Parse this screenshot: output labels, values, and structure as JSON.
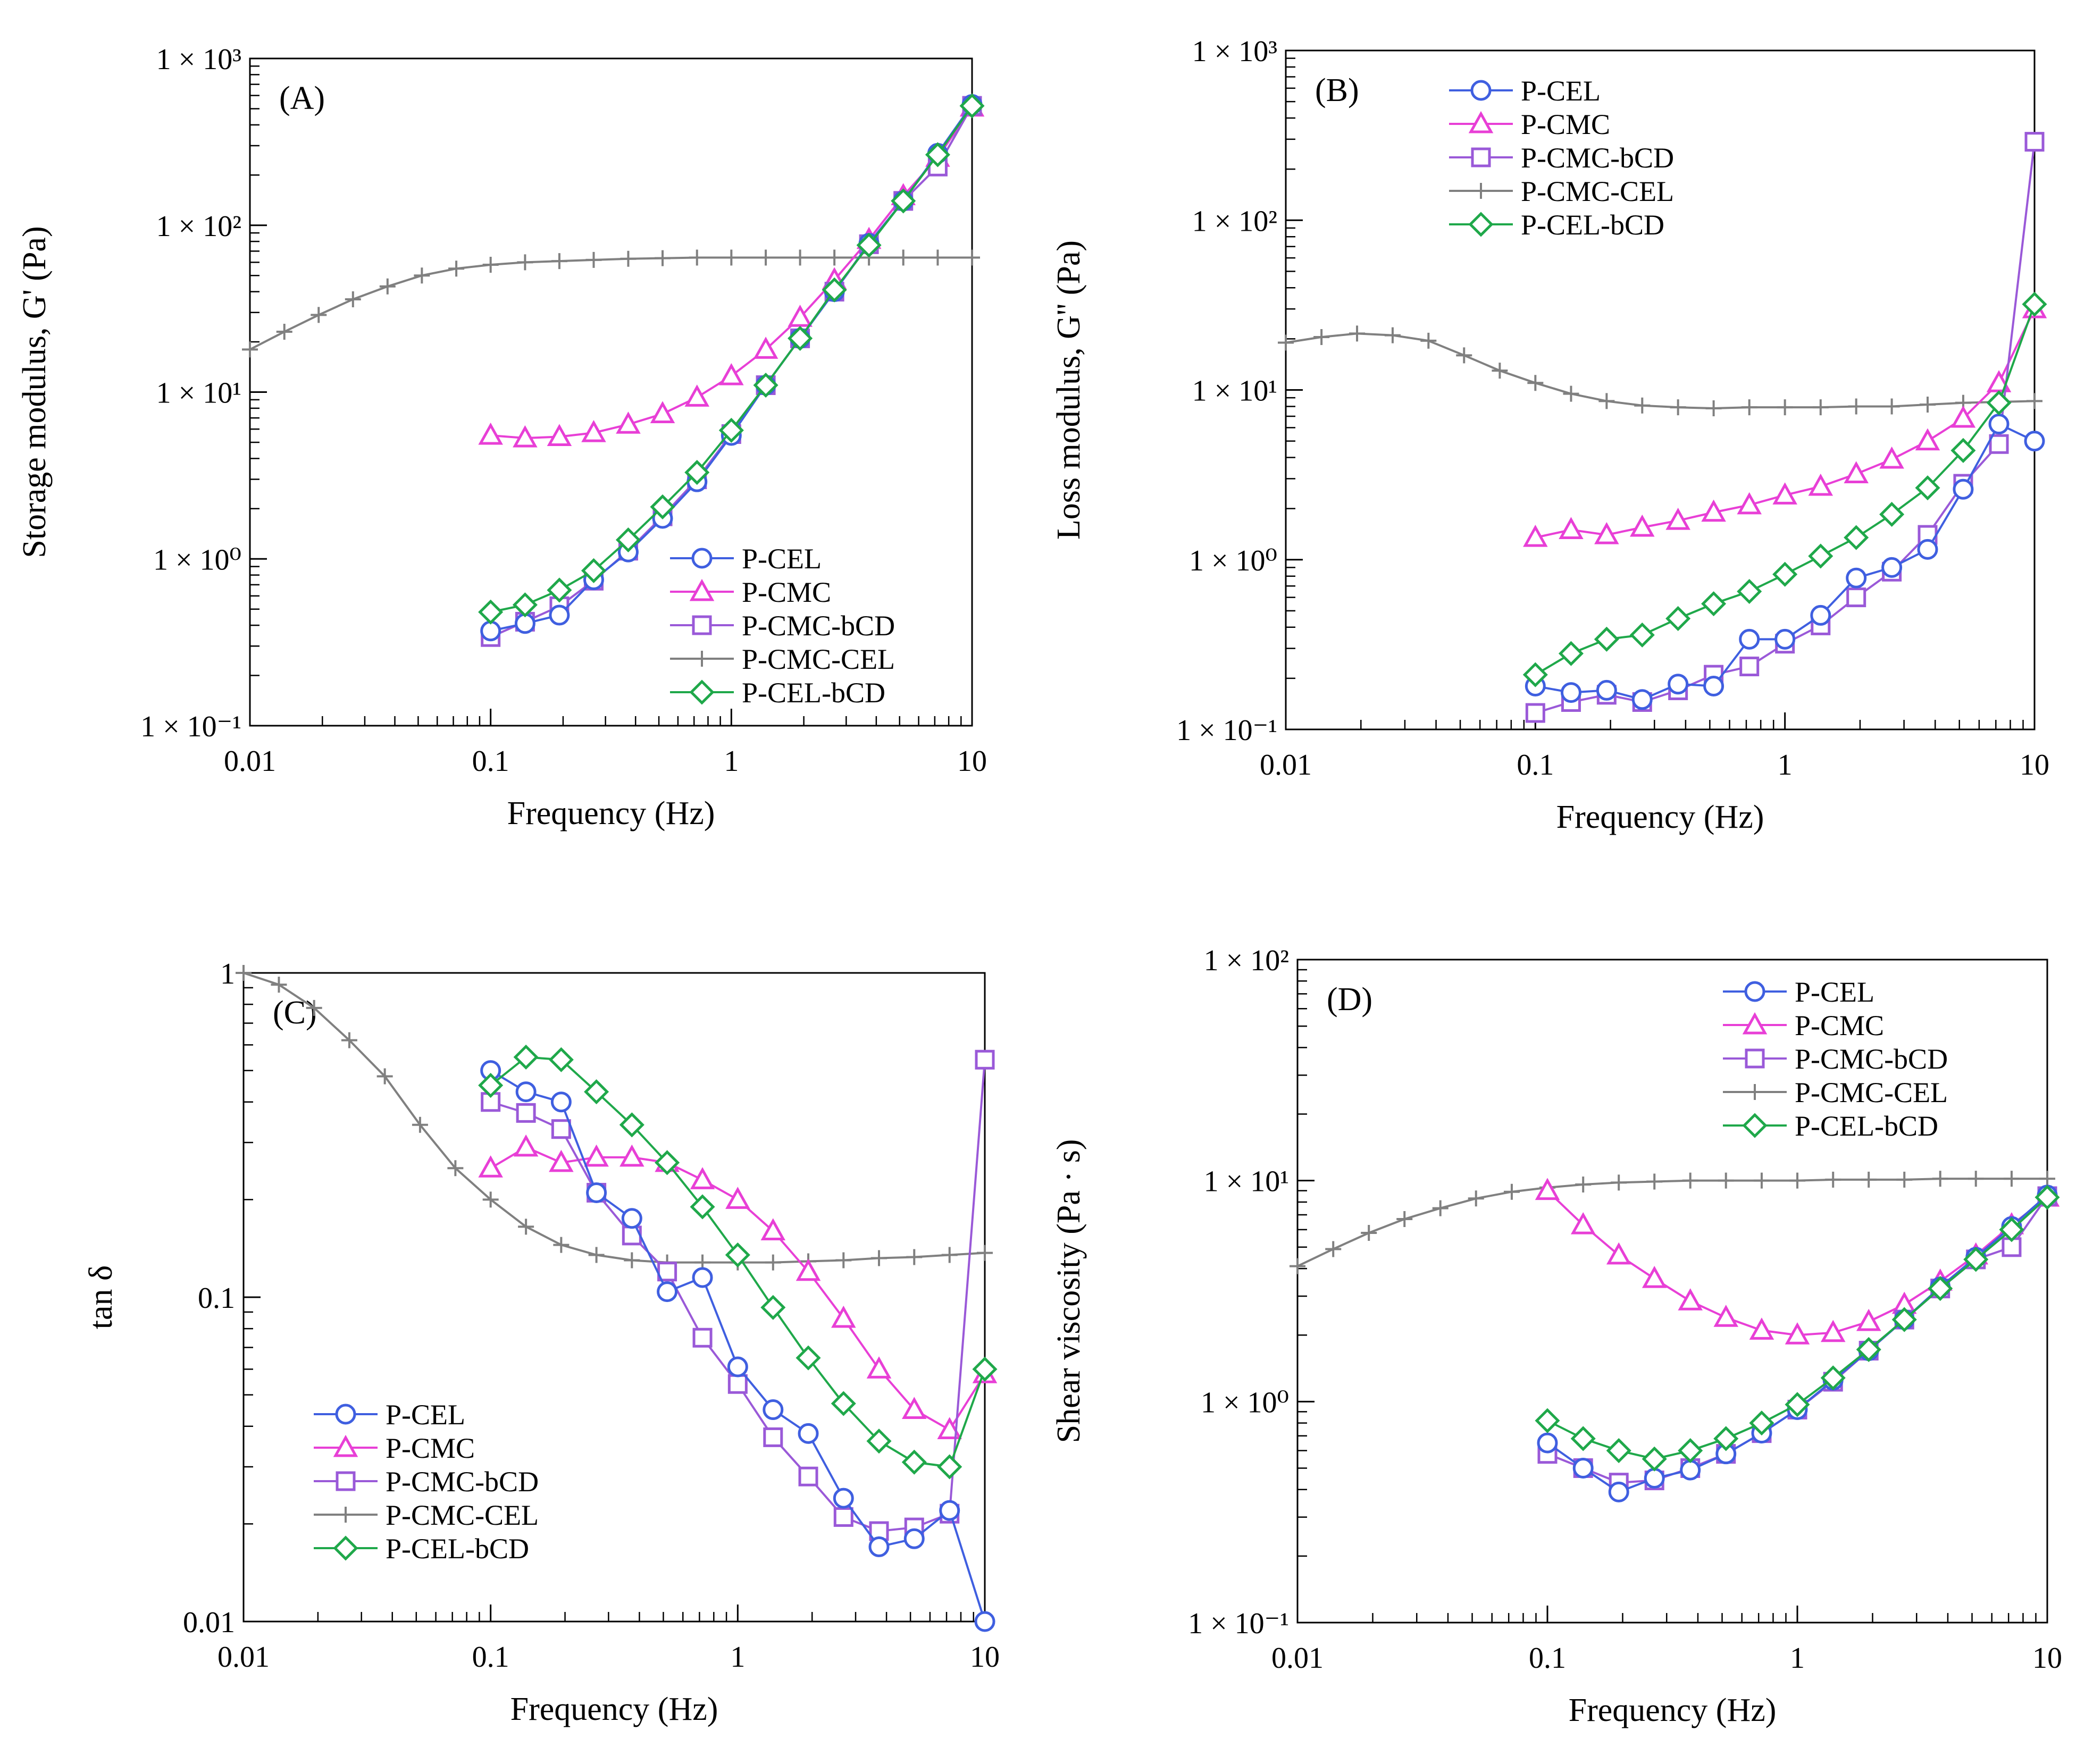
{
  "figure": {
    "series_styles": {
      "P-CEL": {
        "color": "#3f5fe0",
        "marker": "circle"
      },
      "P-CMC": {
        "color": "#e83fd6",
        "marker": "triangle"
      },
      "P-CMC-bCD": {
        "color": "#9a59d8",
        "marker": "square"
      },
      "P-CMC-CEL": {
        "color": "#808080",
        "marker": "plus"
      },
      "P-CEL-bCD": {
        "color": "#1fa84a",
        "marker": "diamond"
      }
    }
  },
  "chart_data": [
    {
      "id": "A",
      "type": "line",
      "panel_label": "(A)",
      "xlabel": "Frequency (Hz)",
      "ylabel": "Storage modulus, G' (Pa)",
      "xscale": "log",
      "yscale": "log",
      "xlim": [
        0.01,
        10
      ],
      "ylim": [
        0.1,
        1000
      ],
      "x_ticks": [
        {
          "v": 0.01,
          "label": "0.01"
        },
        {
          "v": 0.1,
          "label": "0.1"
        },
        {
          "v": 1,
          "label": "1"
        },
        {
          "v": 10,
          "label": "10"
        }
      ],
      "y_ticks": [
        {
          "v": 0.1,
          "label": "1 × 10⁻¹"
        },
        {
          "v": 1,
          "label": "1 × 10⁰"
        },
        {
          "v": 10,
          "label": "1 × 10¹"
        },
        {
          "v": 100,
          "label": "1 × 10²"
        },
        {
          "v": 1000,
          "label": "1 × 10³"
        }
      ],
      "legend_position": "bottom-right",
      "series": [
        {
          "name": "P-CEL",
          "x": [
            0.1,
            0.139,
            0.193,
            0.268,
            0.373,
            0.518,
            0.72,
            1.0,
            1.39,
            1.93,
            2.68,
            3.73,
            5.18,
            7.2,
            10
          ],
          "values": [
            0.37,
            0.41,
            0.46,
            0.75,
            1.1,
            1.75,
            2.9,
            5.5,
            11,
            21,
            40,
            78,
            140,
            270,
            530
          ]
        },
        {
          "name": "P-CMC",
          "x": [
            0.1,
            0.139,
            0.193,
            0.268,
            0.373,
            0.518,
            0.72,
            1.0,
            1.39,
            1.93,
            2.68,
            3.73,
            5.18,
            7.2,
            10
          ],
          "values": [
            5.5,
            5.3,
            5.4,
            5.7,
            6.4,
            7.4,
            9.3,
            12.5,
            18,
            28,
            47,
            82,
            150,
            255,
            510
          ]
        },
        {
          "name": "P-CMC-bCD",
          "x": [
            0.1,
            0.139,
            0.193,
            0.268,
            0.373,
            0.518,
            0.72,
            1.0,
            1.39,
            1.93,
            2.68,
            3.73,
            5.18,
            7.2,
            10
          ],
          "values": [
            0.34,
            0.42,
            0.52,
            0.74,
            1.12,
            1.8,
            3.0,
            5.6,
            11,
            21,
            40,
            77,
            140,
            225,
            520
          ]
        },
        {
          "name": "P-CMC-CEL",
          "x": [
            0.01,
            0.0139,
            0.0193,
            0.0268,
            0.0373,
            0.0518,
            0.072,
            0.1,
            0.139,
            0.193,
            0.268,
            0.373,
            0.518,
            0.72,
            1.0,
            1.39,
            1.93,
            2.68,
            3.73,
            5.18,
            7.2,
            10
          ],
          "values": [
            18,
            23,
            29,
            36,
            43,
            50,
            55,
            58,
            60,
            61,
            62,
            63,
            63.5,
            64,
            64,
            64,
            64,
            64,
            64,
            64,
            64,
            64
          ]
        },
        {
          "name": "P-CEL-bCD",
          "x": [
            0.1,
            0.139,
            0.193,
            0.268,
            0.373,
            0.518,
            0.72,
            1.0,
            1.39,
            1.93,
            2.68,
            3.73,
            5.18,
            7.2,
            10
          ],
          "values": [
            0.48,
            0.53,
            0.65,
            0.85,
            1.3,
            2.05,
            3.3,
            5.9,
            11,
            21,
            41,
            76,
            140,
            265,
            520
          ]
        }
      ]
    },
    {
      "id": "B",
      "type": "line",
      "panel_label": "(B)",
      "xlabel": "Frequency (Hz)",
      "ylabel": "Loss modulus, G'' (Pa)",
      "xscale": "log",
      "yscale": "log",
      "xlim": [
        0.01,
        10
      ],
      "ylim": [
        0.1,
        1000
      ],
      "x_ticks": [
        {
          "v": 0.01,
          "label": "0.01"
        },
        {
          "v": 0.1,
          "label": "0.1"
        },
        {
          "v": 1,
          "label": "1"
        },
        {
          "v": 10,
          "label": "10"
        }
      ],
      "y_ticks": [
        {
          "v": 0.1,
          "label": "1 × 10⁻¹"
        },
        {
          "v": 1,
          "label": "1 × 10⁰"
        },
        {
          "v": 10,
          "label": "1 × 10¹"
        },
        {
          "v": 100,
          "label": "1 × 10²"
        },
        {
          "v": 1000,
          "label": "1 × 10³"
        }
      ],
      "legend_position": "top-left",
      "series": [
        {
          "name": "P-CEL",
          "x": [
            0.1,
            0.139,
            0.193,
            0.268,
            0.373,
            0.518,
            0.72,
            1.0,
            1.39,
            1.93,
            2.68,
            3.73,
            5.18,
            7.2,
            10
          ],
          "values": [
            0.18,
            0.165,
            0.17,
            0.15,
            0.185,
            0.18,
            0.34,
            0.34,
            0.47,
            0.78,
            0.9,
            1.15,
            2.6,
            6.3,
            5.0
          ]
        },
        {
          "name": "P-CMC",
          "x": [
            0.1,
            0.139,
            0.193,
            0.268,
            0.373,
            0.518,
            0.72,
            1.0,
            1.39,
            1.93,
            2.68,
            3.73,
            5.18,
            7.2,
            10
          ],
          "values": [
            1.35,
            1.5,
            1.4,
            1.55,
            1.7,
            1.9,
            2.1,
            2.4,
            2.7,
            3.2,
            3.9,
            5.0,
            6.8,
            11,
            30
          ]
        },
        {
          "name": "P-CMC-bCD",
          "x": [
            0.1,
            0.139,
            0.193,
            0.268,
            0.373,
            0.518,
            0.72,
            1.0,
            1.39,
            1.93,
            2.68,
            3.73,
            5.18,
            7.2,
            10
          ],
          "values": [
            0.125,
            0.145,
            0.16,
            0.145,
            0.17,
            0.21,
            0.235,
            0.32,
            0.41,
            0.6,
            0.85,
            1.4,
            2.8,
            4.8,
            290
          ]
        },
        {
          "name": "P-CMC-CEL",
          "x": [
            0.01,
            0.0139,
            0.0193,
            0.0268,
            0.0373,
            0.0518,
            0.072,
            0.1,
            0.139,
            0.193,
            0.268,
            0.373,
            0.518,
            0.72,
            1.0,
            1.39,
            1.93,
            2.68,
            3.73,
            5.18,
            7.2,
            10
          ],
          "values": [
            19,
            20.5,
            21.5,
            21,
            19.5,
            16,
            13,
            11,
            9.5,
            8.6,
            8.1,
            7.9,
            7.8,
            7.9,
            7.9,
            7.9,
            8.0,
            8.0,
            8.2,
            8.4,
            8.5,
            8.6
          ]
        },
        {
          "name": "P-CEL-bCD",
          "x": [
            0.1,
            0.139,
            0.193,
            0.268,
            0.373,
            0.518,
            0.72,
            1.0,
            1.39,
            1.93,
            2.68,
            3.73,
            5.18,
            7.2,
            10
          ],
          "values": [
            0.21,
            0.28,
            0.34,
            0.36,
            0.45,
            0.55,
            0.65,
            0.82,
            1.05,
            1.35,
            1.85,
            2.65,
            4.4,
            8.4,
            32
          ]
        }
      ]
    },
    {
      "id": "C",
      "type": "line",
      "panel_label": "(C)",
      "xlabel": "Frequency (Hz)",
      "ylabel": "tan δ",
      "xscale": "log",
      "yscale": "log",
      "xlim": [
        0.01,
        10
      ],
      "ylim": [
        0.01,
        1
      ],
      "x_ticks": [
        {
          "v": 0.01,
          "label": "0.01"
        },
        {
          "v": 0.1,
          "label": "0.1"
        },
        {
          "v": 1,
          "label": "1"
        },
        {
          "v": 10,
          "label": "10"
        }
      ],
      "y_ticks": [
        {
          "v": 0.01,
          "label": "0.01"
        },
        {
          "v": 0.1,
          "label": "0.1"
        },
        {
          "v": 1,
          "label": "1"
        }
      ],
      "legend_position": "bottom-left",
      "series": [
        {
          "name": "P-CEL",
          "x": [
            0.1,
            0.139,
            0.193,
            0.268,
            0.373,
            0.518,
            0.72,
            1.0,
            1.39,
            1.93,
            2.68,
            3.73,
            5.18,
            7.2,
            10
          ],
          "values": [
            0.5,
            0.43,
            0.4,
            0.21,
            0.175,
            0.104,
            0.115,
            0.061,
            0.045,
            0.038,
            0.024,
            0.017,
            0.018,
            0.022,
            0.01
          ]
        },
        {
          "name": "P-CMC",
          "x": [
            0.1,
            0.139,
            0.193,
            0.268,
            0.373,
            0.518,
            0.72,
            1.0,
            1.39,
            1.93,
            2.68,
            3.73,
            5.18,
            7.2,
            10
          ],
          "values": [
            0.25,
            0.29,
            0.26,
            0.27,
            0.27,
            0.26,
            0.23,
            0.2,
            0.16,
            0.12,
            0.086,
            0.06,
            0.045,
            0.039,
            0.058
          ]
        },
        {
          "name": "P-CMC-bCD",
          "x": [
            0.1,
            0.139,
            0.193,
            0.268,
            0.373,
            0.518,
            0.72,
            1.0,
            1.39,
            1.93,
            2.68,
            3.73,
            5.18,
            7.2,
            10
          ],
          "values": [
            0.4,
            0.37,
            0.33,
            0.21,
            0.155,
            0.12,
            0.075,
            0.054,
            0.037,
            0.028,
            0.021,
            0.019,
            0.0195,
            0.0215,
            0.54
          ]
        },
        {
          "name": "P-CMC-CEL",
          "x": [
            0.01,
            0.0139,
            0.0193,
            0.0268,
            0.0373,
            0.0518,
            0.072,
            0.1,
            0.139,
            0.193,
            0.268,
            0.373,
            0.518,
            0.72,
            1.0,
            1.39,
            1.93,
            2.68,
            3.73,
            5.18,
            7.2,
            10
          ],
          "values": [
            1.0,
            0.92,
            0.78,
            0.62,
            0.48,
            0.34,
            0.25,
            0.2,
            0.165,
            0.145,
            0.135,
            0.13,
            0.128,
            0.128,
            0.128,
            0.128,
            0.129,
            0.13,
            0.132,
            0.133,
            0.135,
            0.137
          ]
        },
        {
          "name": "P-CEL-bCD",
          "x": [
            0.1,
            0.139,
            0.193,
            0.268,
            0.373,
            0.518,
            0.72,
            1.0,
            1.39,
            1.93,
            2.68,
            3.73,
            5.18,
            7.2,
            10
          ],
          "values": [
            0.45,
            0.55,
            0.54,
            0.43,
            0.34,
            0.26,
            0.19,
            0.135,
            0.093,
            0.065,
            0.047,
            0.036,
            0.031,
            0.03,
            0.06
          ]
        }
      ]
    },
    {
      "id": "D",
      "type": "line",
      "panel_label": "(D)",
      "xlabel": "Frequency (Hz)",
      "ylabel": "Shear viscosity (Pa · s)",
      "xscale": "log",
      "yscale": "log",
      "xlim": [
        0.01,
        10
      ],
      "ylim": [
        0.1,
        100
      ],
      "x_ticks": [
        {
          "v": 0.01,
          "label": "0.01"
        },
        {
          "v": 0.1,
          "label": "0.1"
        },
        {
          "v": 1,
          "label": "1"
        },
        {
          "v": 10,
          "label": "10"
        }
      ],
      "y_ticks": [
        {
          "v": 0.1,
          "label": "1 × 10⁻¹"
        },
        {
          "v": 1,
          "label": "1 × 10⁰"
        },
        {
          "v": 10,
          "label": "1 × 10¹"
        },
        {
          "v": 100,
          "label": "1 × 10²"
        }
      ],
      "legend_position": "top-right",
      "series": [
        {
          "name": "P-CEL",
          "x": [
            0.1,
            0.139,
            0.193,
            0.268,
            0.373,
            0.518,
            0.72,
            1.0,
            1.39,
            1.93,
            2.68,
            3.73,
            5.18,
            7.2,
            10
          ],
          "values": [
            0.65,
            0.5,
            0.39,
            0.45,
            0.49,
            0.58,
            0.72,
            0.92,
            1.25,
            1.7,
            2.35,
            3.3,
            4.5,
            6.2,
            8.6
          ]
        },
        {
          "name": "P-CMC",
          "x": [
            0.1,
            0.139,
            0.193,
            0.268,
            0.373,
            0.518,
            0.72,
            1.0,
            1.39,
            1.93,
            2.68,
            3.73,
            5.18,
            7.2,
            10
          ],
          "values": [
            9.0,
            6.3,
            4.6,
            3.6,
            2.85,
            2.4,
            2.1,
            2.0,
            2.05,
            2.3,
            2.75,
            3.5,
            4.6,
            6.3,
            8.4
          ]
        },
        {
          "name": "P-CMC-bCD",
          "x": [
            0.1,
            0.139,
            0.193,
            0.268,
            0.373,
            0.518,
            0.72,
            1.0,
            1.39,
            1.93,
            2.68,
            3.73,
            5.18,
            7.2,
            10
          ],
          "values": [
            0.58,
            0.5,
            0.43,
            0.44,
            0.5,
            0.58,
            0.72,
            0.92,
            1.23,
            1.7,
            2.35,
            3.25,
            4.4,
            5.0,
            8.5
          ]
        },
        {
          "name": "P-CMC-CEL",
          "x": [
            0.01,
            0.0139,
            0.0193,
            0.0268,
            0.0373,
            0.0518,
            0.072,
            0.1,
            0.139,
            0.193,
            0.268,
            0.373,
            0.518,
            0.72,
            1.0,
            1.39,
            1.93,
            2.68,
            3.73,
            5.18,
            7.2,
            10
          ],
          "values": [
            4.1,
            4.9,
            5.8,
            6.7,
            7.5,
            8.3,
            8.9,
            9.3,
            9.6,
            9.8,
            9.9,
            10.0,
            10.0,
            10.0,
            10.0,
            10.1,
            10.1,
            10.1,
            10.2,
            10.2,
            10.2,
            10.2
          ]
        },
        {
          "name": "P-CEL-bCD",
          "x": [
            0.1,
            0.139,
            0.193,
            0.268,
            0.373,
            0.518,
            0.72,
            1.0,
            1.39,
            1.93,
            2.68,
            3.73,
            5.18,
            7.2,
            10
          ],
          "values": [
            0.82,
            0.68,
            0.6,
            0.55,
            0.6,
            0.68,
            0.8,
            0.97,
            1.28,
            1.72,
            2.35,
            3.25,
            4.4,
            6.0,
            8.4
          ]
        }
      ]
    }
  ]
}
